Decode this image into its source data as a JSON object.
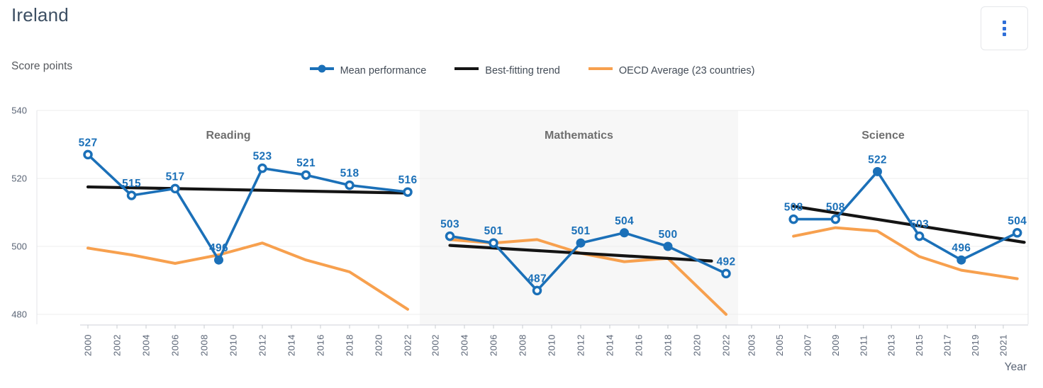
{
  "header": {
    "title": "Ireland"
  },
  "menu_button": {
    "icon": "vertical-ellipsis"
  },
  "legend": {
    "items": [
      {
        "label": "Mean performance",
        "type": "line-dot",
        "color": "#1b70b8"
      },
      {
        "label": "Best-fitting trend",
        "type": "line",
        "color": "#141414"
      },
      {
        "label": "OECD Average (23 countries)",
        "type": "line",
        "color": "#f7a04e"
      }
    ]
  },
  "chart_data": {
    "type": "line",
    "title": "Ireland",
    "ylabel": "Score points",
    "xlabel": "Year",
    "ylim": [
      476,
      540
    ],
    "y_ticks": [
      540,
      520,
      500,
      480
    ],
    "grid": true,
    "legend_position": "top-center",
    "colors": {
      "mean": "#1b70b8",
      "trend": "#141414",
      "oecd": "#f7a04e",
      "panel_highlight": "#f7f7f7",
      "label": "#1b70b8"
    },
    "panels": [
      {
        "title": "Reading",
        "highlighted": false,
        "x_ticks": [
          2000,
          2002,
          2004,
          2006,
          2008,
          2010,
          2012,
          2014,
          2016,
          2018,
          2020,
          2022
        ],
        "series": {
          "mean": {
            "name": "Mean performance",
            "years": [
              2000,
              2003,
              2006,
              2009,
              2012,
              2015,
              2018,
              2022
            ],
            "values": [
              527,
              515,
              517,
              496,
              523,
              521,
              518,
              516
            ],
            "filled": [
              false,
              false,
              false,
              true,
              false,
              false,
              false,
              false
            ]
          },
          "trend": {
            "name": "Best-fitting trend",
            "start_year": 2000,
            "start_value": 517.5,
            "end_year": 2022,
            "end_value": 515.7
          },
          "oecd": {
            "name": "OECD Average (23 countries)",
            "years": [
              2000,
              2003,
              2006,
              2009,
              2012,
              2015,
              2018,
              2022
            ],
            "values": [
              499.5,
              497.5,
              495,
              497.5,
              501,
              496,
              492.5,
              481.5
            ]
          }
        }
      },
      {
        "title": "Mathematics",
        "highlighted": true,
        "x_ticks": [
          2002,
          2004,
          2006,
          2008,
          2010,
          2012,
          2014,
          2016,
          2018,
          2020,
          2022
        ],
        "series": {
          "mean": {
            "name": "Mean performance",
            "years": [
              2003,
              2006,
              2009,
              2012,
              2015,
              2018,
              2022
            ],
            "values": [
              503,
              501,
              487,
              501,
              504,
              500,
              492
            ],
            "filled": [
              false,
              false,
              false,
              true,
              true,
              true,
              false
            ]
          },
          "trend": {
            "name": "Best-fitting trend",
            "start_year": 2003,
            "start_value": 500.3,
            "end_year": 2021,
            "end_value": 495.7
          },
          "oecd": {
            "name": "OECD Average (23 countries)",
            "years": [
              2003,
              2006,
              2009,
              2012,
              2015,
              2018,
              2022
            ],
            "values": [
              502,
              501,
              502,
              498,
              495.5,
              496.5,
              480
            ]
          }
        }
      },
      {
        "title": "Science",
        "highlighted": false,
        "x_ticks": [
          2003,
          2005,
          2007,
          2009,
          2011,
          2013,
          2015,
          2017,
          2019,
          2021
        ],
        "series": {
          "mean": {
            "name": "Mean performance",
            "years": [
              2006,
              2009,
              2012,
              2015,
              2018,
              2022
            ],
            "values": [
              508,
              508,
              522,
              503,
              496,
              504
            ],
            "filled": [
              false,
              false,
              true,
              false,
              true,
              false
            ]
          },
          "trend": {
            "name": "Best-fitting trend",
            "start_year": 2006,
            "start_value": 511.8,
            "end_year": 2022.5,
            "end_value": 501.2
          },
          "oecd": {
            "name": "OECD Average (23 countries)",
            "years": [
              2006,
              2009,
              2012,
              2015,
              2018,
              2022
            ],
            "values": [
              503,
              505.5,
              504.5,
              497,
              493,
              490.5
            ]
          }
        }
      }
    ]
  }
}
